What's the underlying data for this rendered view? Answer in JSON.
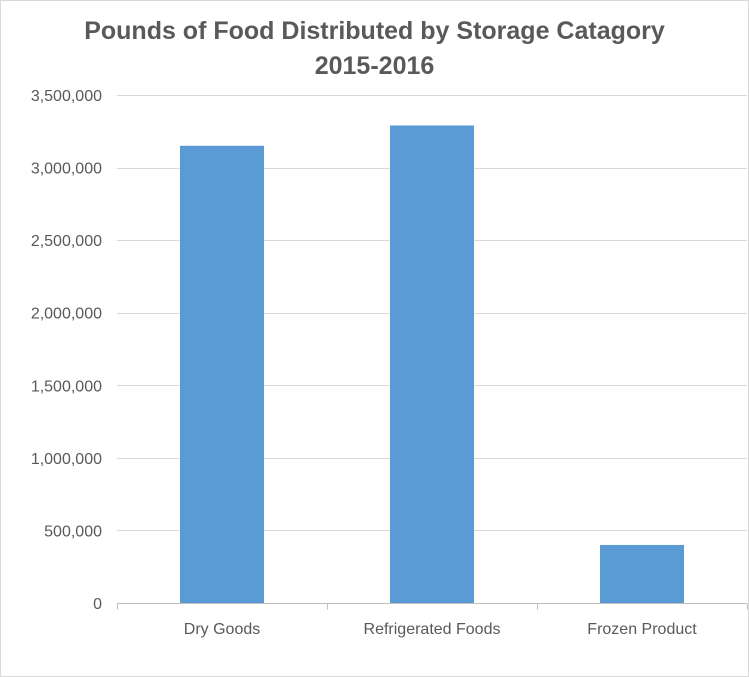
{
  "chart_data": {
    "type": "bar",
    "title": "Pounds of Food Distributed by Storage Catagory",
    "subtitle": "2015-2016",
    "xlabel": "",
    "ylabel": "",
    "categories": [
      "Dry Goods",
      "Refrigerated Foods",
      "Frozen Product"
    ],
    "series": [
      {
        "values": [
          3150000,
          3290000,
          400000
        ]
      }
    ],
    "ylim": [
      0,
      3500000
    ],
    "yticks": [
      0,
      500000,
      1000000,
      1500000,
      2000000,
      2500000,
      3000000,
      3500000
    ],
    "ytick_labels": [
      "0",
      "500,000",
      "1,000,000",
      "1,500,000",
      "2,000,000",
      "2,500,000",
      "3,000,000",
      "3,500,000"
    ],
    "grid": true,
    "legend": "none",
    "colors": {
      "bar": "#5b9bd5",
      "grid": "#d9d9d9",
      "axis": "#bfbfbf",
      "text": "#595959"
    }
  }
}
